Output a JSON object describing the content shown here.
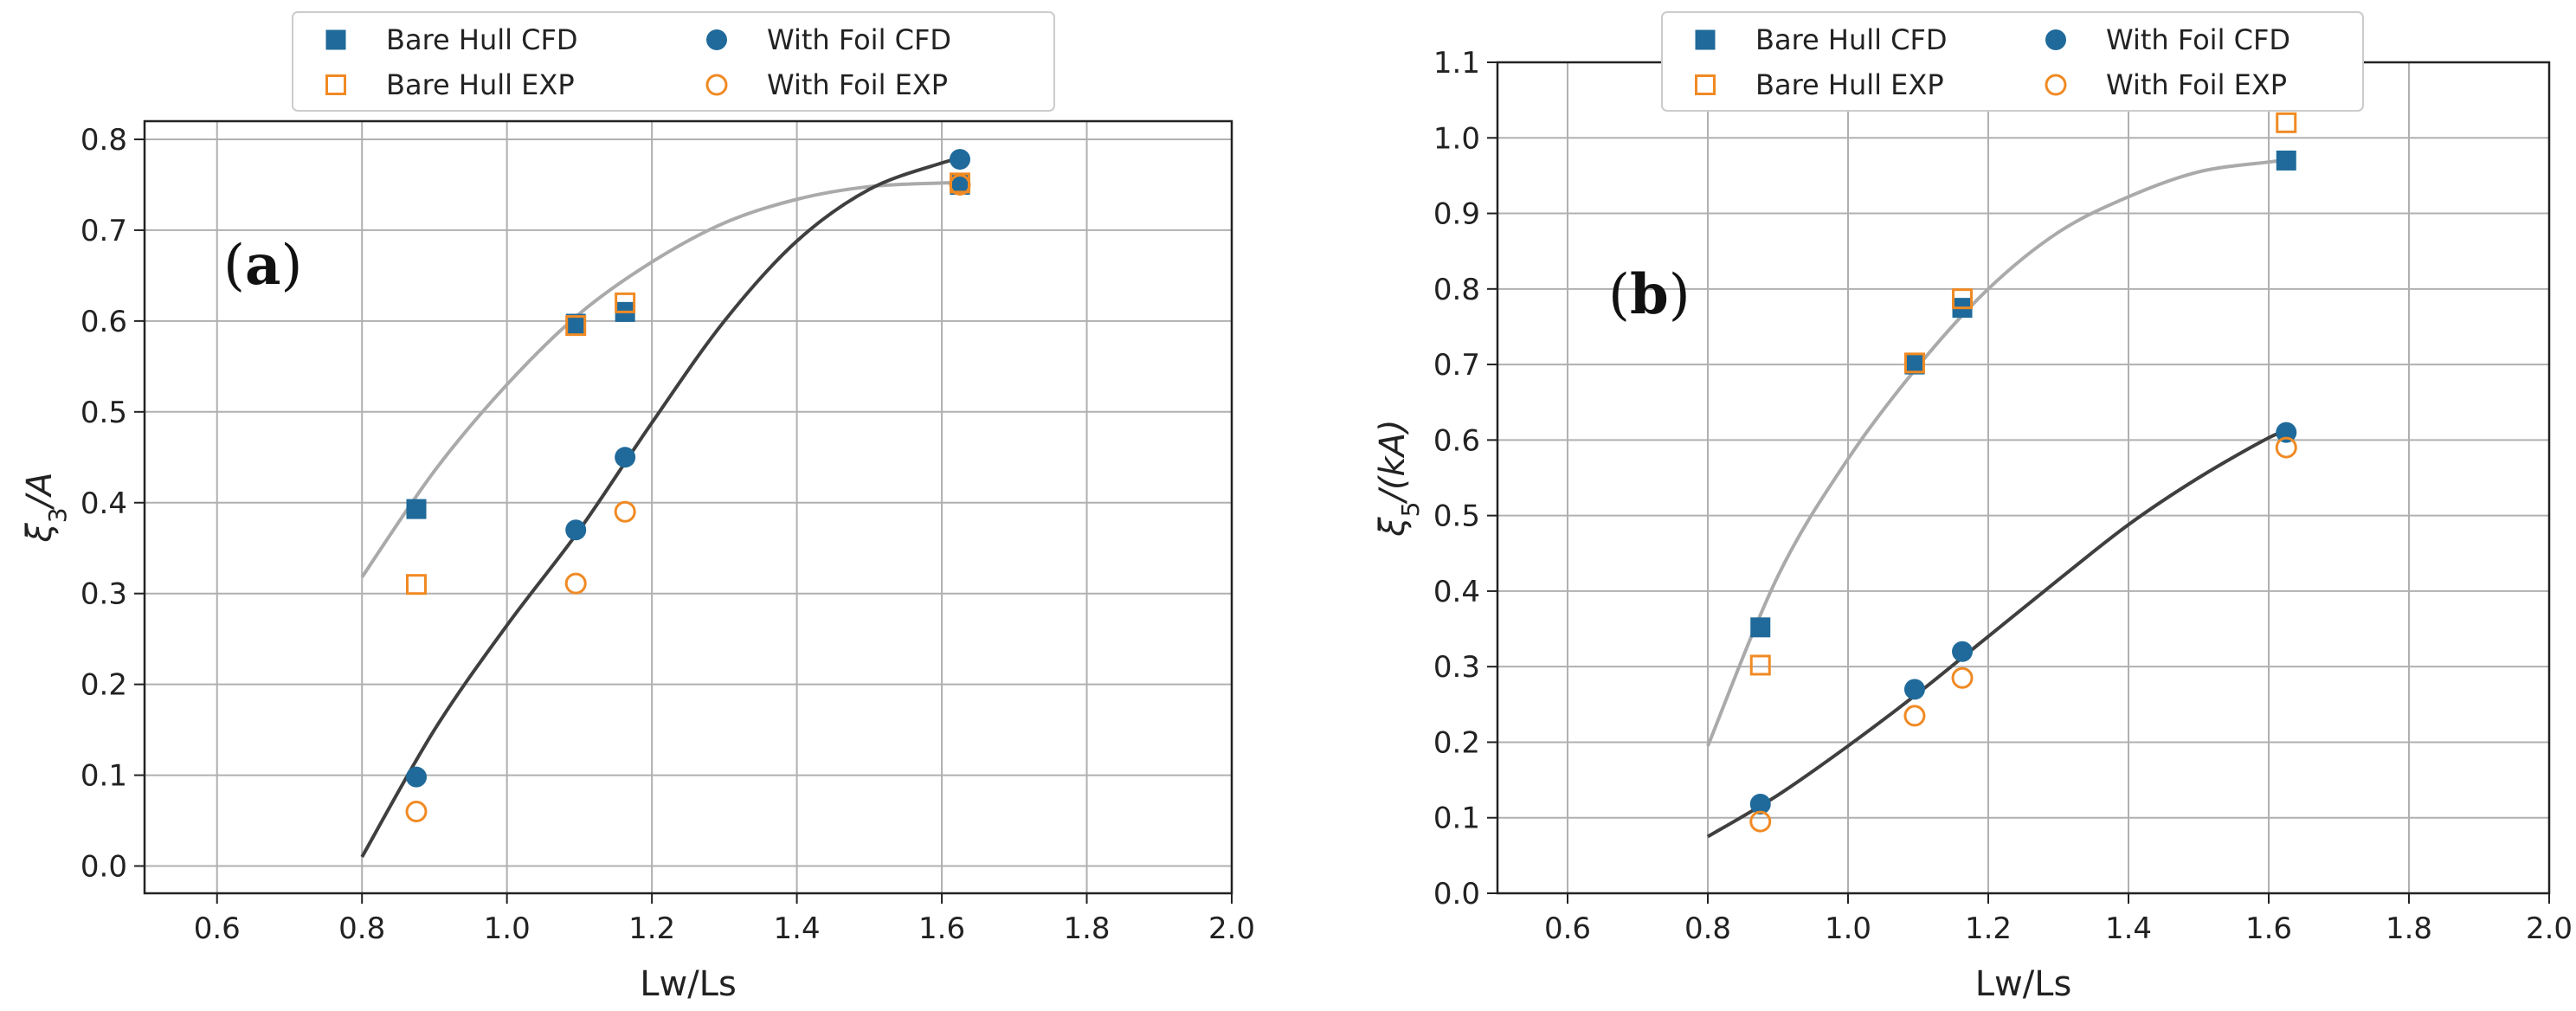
{
  "colors": {
    "cfd": "#1f6a9a",
    "exp": "#f08a24",
    "bare_fit": "#aaaaaa",
    "foil_fit": "#3f3f3f",
    "grid": "#b0b0b0",
    "axis": "#222222"
  },
  "chart_data": [
    {
      "type": "scatter",
      "panel_label": "a",
      "title": "",
      "xlabel": "Lw/Ls",
      "ylabel_main": "ξ",
      "ylabel_sub": "3",
      "ylabel_rest": "/A",
      "xlim": [
        0.5,
        2.0
      ],
      "ylim": [
        -0.03,
        0.82
      ],
      "xticks": [
        "0.6",
        "0.8",
        "1.0",
        "1.2",
        "1.4",
        "1.6",
        "1.8",
        "2.0"
      ],
      "yticks": [
        "0.0",
        "0.1",
        "0.2",
        "0.3",
        "0.4",
        "0.5",
        "0.6",
        "0.7",
        "0.8"
      ],
      "grid": true,
      "legend_location": "above plot",
      "series": [
        {
          "name": "Bare Hull CFD",
          "marker": "square-filled",
          "x": [
            0.875,
            1.095,
            1.163,
            1.625
          ],
          "y": [
            0.393,
            0.597,
            0.61,
            0.75
          ]
        },
        {
          "name": "Bare Hull EXP",
          "marker": "square-open",
          "x": [
            0.875,
            1.095,
            1.163,
            1.625
          ],
          "y": [
            0.31,
            0.595,
            0.62,
            0.752
          ]
        },
        {
          "name": "With Foil CFD",
          "marker": "circle-filled",
          "x": [
            0.875,
            1.095,
            1.163,
            1.625
          ],
          "y": [
            0.098,
            0.37,
            0.45,
            0.778
          ]
        },
        {
          "name": "With Foil EXP",
          "marker": "circle-open",
          "x": [
            0.875,
            1.095,
            1.163,
            1.625
          ],
          "y": [
            0.06,
            0.311,
            0.39,
            0.75
          ]
        }
      ],
      "fits": [
        {
          "name": "Bare Hull fit",
          "x": [
            0.8,
            0.9,
            1.0,
            1.1,
            1.2,
            1.3,
            1.4,
            1.5,
            1.6,
            1.625
          ],
          "y": [
            0.318,
            0.435,
            0.53,
            0.608,
            0.665,
            0.708,
            0.734,
            0.748,
            0.752,
            0.752
          ]
        },
        {
          "name": "With Foil fit",
          "x": [
            0.8,
            0.9,
            1.0,
            1.1,
            1.2,
            1.3,
            1.4,
            1.5,
            1.6,
            1.625
          ],
          "y": [
            0.01,
            0.15,
            0.265,
            0.37,
            0.488,
            0.6,
            0.688,
            0.745,
            0.774,
            0.778
          ]
        }
      ]
    },
    {
      "type": "scatter",
      "panel_label": "b",
      "title": "",
      "xlabel": "Lw/Ls",
      "ylabel_main": "ξ",
      "ylabel_sub": "5",
      "ylabel_rest": "/(kA)",
      "xlim": [
        0.5,
        2.0
      ],
      "ylim": [
        0.0,
        1.1
      ],
      "xticks": [
        "0.6",
        "0.8",
        "1.0",
        "1.2",
        "1.4",
        "1.6",
        "1.8",
        "2.0"
      ],
      "yticks": [
        "0.0",
        "0.1",
        "0.2",
        "0.3",
        "0.4",
        "0.5",
        "0.6",
        "0.7",
        "0.8",
        "0.9",
        "1.0",
        "1.1"
      ],
      "grid": true,
      "legend_location": "above plot",
      "series": [
        {
          "name": "Bare Hull CFD",
          "marker": "square-filled",
          "x": [
            0.875,
            1.095,
            1.163,
            1.625
          ],
          "y": [
            0.352,
            0.7,
            0.775,
            0.97
          ]
        },
        {
          "name": "Bare Hull EXP",
          "marker": "square-open",
          "x": [
            0.875,
            1.095,
            1.163,
            1.625
          ],
          "y": [
            0.302,
            0.702,
            0.787,
            1.02
          ]
        },
        {
          "name": "With Foil CFD",
          "marker": "circle-filled",
          "x": [
            0.875,
            1.095,
            1.163,
            1.625
          ],
          "y": [
            0.118,
            0.27,
            0.32,
            0.61
          ]
        },
        {
          "name": "With Foil EXP",
          "marker": "circle-open",
          "x": [
            0.875,
            1.095,
            1.163,
            1.625
          ],
          "y": [
            0.095,
            0.235,
            0.285,
            0.59
          ]
        }
      ],
      "fits": [
        {
          "name": "Bare Hull fit",
          "x": [
            0.8,
            0.9,
            1.0,
            1.1,
            1.2,
            1.3,
            1.4,
            1.5,
            1.6,
            1.625
          ],
          "y": [
            0.195,
            0.42,
            0.575,
            0.698,
            0.8,
            0.875,
            0.922,
            0.955,
            0.968,
            0.97
          ]
        },
        {
          "name": "With Foil fit",
          "x": [
            0.8,
            0.9,
            1.0,
            1.1,
            1.2,
            1.3,
            1.4,
            1.5,
            1.6,
            1.625
          ],
          "y": [
            0.075,
            0.13,
            0.195,
            0.265,
            0.34,
            0.415,
            0.488,
            0.55,
            0.603,
            0.61
          ]
        }
      ]
    }
  ]
}
